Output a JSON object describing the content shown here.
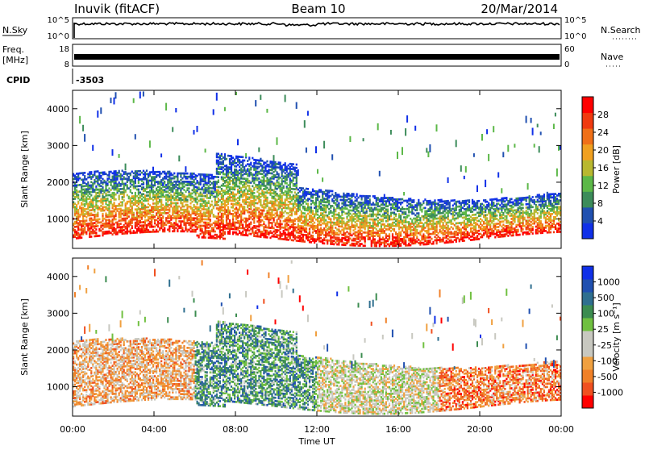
{
  "header": {
    "station": "Inuvik (fitACF)",
    "beam": "Beam 10",
    "date": "20/Mar/2014"
  },
  "strips": {
    "nsky": {
      "left_label": "N.Sky",
      "left_ticks": [
        "10^5",
        "10^0"
      ],
      "right_ticks": [
        "10^5",
        "10^0"
      ],
      "right_label": "N.Search"
    },
    "freq": {
      "left_label_1": "Freq.",
      "left_label_2": "[MHz]",
      "left_ticks": [
        "18",
        "8"
      ],
      "right_ticks": [
        "60",
        "0"
      ],
      "right_label": "Nave"
    },
    "cpid": {
      "label": "CPID",
      "value": "-3503"
    }
  },
  "time_axis": {
    "label": "Time UT",
    "ticks": [
      "00:00",
      "04:00",
      "08:00",
      "12:00",
      "16:00",
      "20:00",
      "00:00"
    ]
  },
  "colors": {
    "power": [
      "#1030e8",
      "#2050b0",
      "#3c8c5a",
      "#5cb848",
      "#b8b830",
      "#f0a020",
      "#f07018",
      "#f03a10",
      "#ff0000"
    ],
    "velocity": [
      "#ff0000",
      "#f05020",
      "#f08028",
      "#f0a040",
      "#c8c8c0",
      "#c8c8c0",
      "#70c040",
      "#3c8c50",
      "#2f6f8f",
      "#2050b0",
      "#1030e8"
    ]
  },
  "chart_data": [
    {
      "type": "heatmap",
      "name": "power",
      "ylabel": "Slant Range [km]",
      "xlabel": "",
      "xlim": [
        0,
        24
      ],
      "ylim": [
        200,
        4500
      ],
      "yticks": [
        1000,
        2000,
        3000,
        4000
      ],
      "colorbar": {
        "label": "Power [dB]",
        "ticks": [
          4,
          8,
          12,
          16,
          20,
          24,
          28
        ],
        "range": [
          0,
          32
        ]
      },
      "scatter_bands": [
        {
          "x_range": [
            0,
            6
          ],
          "y_range": [
            400,
            2200
          ],
          "level": "high"
        },
        {
          "x_range": [
            6,
            11
          ],
          "y_range": [
            400,
            2600
          ],
          "level": "high"
        },
        {
          "x_range": [
            11,
            17
          ],
          "y_range": [
            500,
            2200
          ],
          "level": "medium"
        },
        {
          "x_range": [
            17,
            24
          ],
          "y_range": [
            400,
            2000
          ],
          "level": "medium"
        }
      ]
    },
    {
      "type": "heatmap",
      "name": "velocity",
      "ylabel": "Slant Range [km]",
      "xlabel": "Time UT",
      "xlim": [
        0,
        24
      ],
      "ylim": [
        200,
        4500
      ],
      "yticks": [
        1000,
        2000,
        3000,
        4000
      ],
      "colorbar": {
        "label": "Velocity [m s⁻¹]",
        "ticks": [
          "1000",
          "500",
          "100",
          "25",
          "-25",
          "-100",
          "-500",
          "-1000"
        ]
      },
      "scatter_bands": [
        {
          "x_range": [
            0,
            6
          ],
          "y_range": [
            400,
            2200
          ],
          "level": "mixed"
        },
        {
          "x_range": [
            6,
            12
          ],
          "y_range": [
            400,
            2400
          ],
          "level": "positive"
        },
        {
          "x_range": [
            12,
            18
          ],
          "y_range": [
            600,
            2200
          ],
          "level": "near-zero"
        },
        {
          "x_range": [
            18,
            24
          ],
          "y_range": [
            500,
            2000
          ],
          "level": "negative"
        }
      ]
    }
  ]
}
